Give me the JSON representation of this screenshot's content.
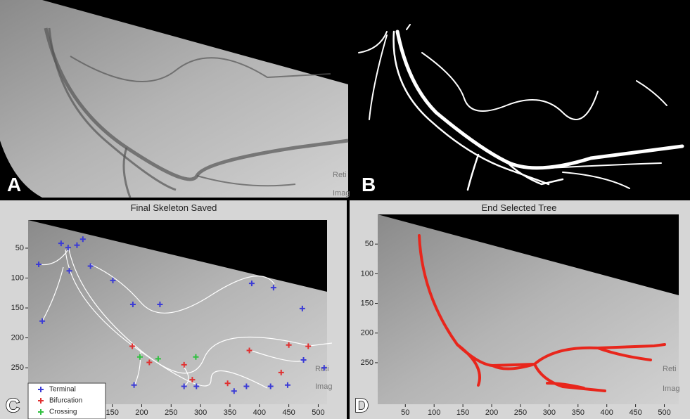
{
  "panels": [
    {
      "label": "A",
      "watermark": [
        "Reti",
        "Imag"
      ]
    },
    {
      "label": "B"
    },
    {
      "label": "C",
      "title": "Final Skeleton Saved",
      "watermark": [
        "Reti",
        "Imag"
      ],
      "xlim": [
        7,
        515
      ],
      "ylim": [
        3,
        311
      ],
      "xticks": [
        150,
        200,
        250,
        300,
        350,
        400,
        450,
        500
      ],
      "yticks": [
        50,
        100,
        150,
        200,
        250
      ],
      "series": [
        {
          "name": "Terminal",
          "color": "#3b3bd6",
          "x": [
            25,
            63,
            75,
            90,
            100,
            77,
            113,
            151,
            185,
            231,
            387,
            424,
            473,
            31,
            187,
            272,
            293,
            357,
            378,
            419,
            448,
            475,
            510
          ],
          "y": [
            77,
            42,
            49,
            45,
            35,
            88,
            80,
            104,
            144,
            144,
            109,
            116,
            151,
            172,
            279,
            281,
            281,
            289,
            281,
            281,
            279,
            237,
            250
          ]
        },
        {
          "name": "Bifurcation",
          "color": "#e03030",
          "x": [
            184,
            213,
            272,
            286,
            346,
            383,
            450,
            437,
            483
          ],
          "y": [
            214,
            241,
            245,
            270,
            276,
            221,
            212,
            258,
            214
          ]
        },
        {
          "name": "Crossing",
          "color": "#30c040",
          "x": [
            197,
            228,
            292
          ],
          "y": [
            232,
            235,
            232
          ]
        }
      ]
    },
    {
      "label": "D",
      "title": "End Selected Tree",
      "watermark": [
        "Reti",
        "Imag"
      ],
      "xlim": [
        2,
        525
      ],
      "ylim": [
        0,
        320
      ],
      "xticks": [
        50,
        100,
        150,
        200,
        250,
        300,
        350,
        400,
        450,
        500
      ],
      "yticks": [
        50,
        100,
        150,
        200,
        250
      ]
    }
  ]
}
